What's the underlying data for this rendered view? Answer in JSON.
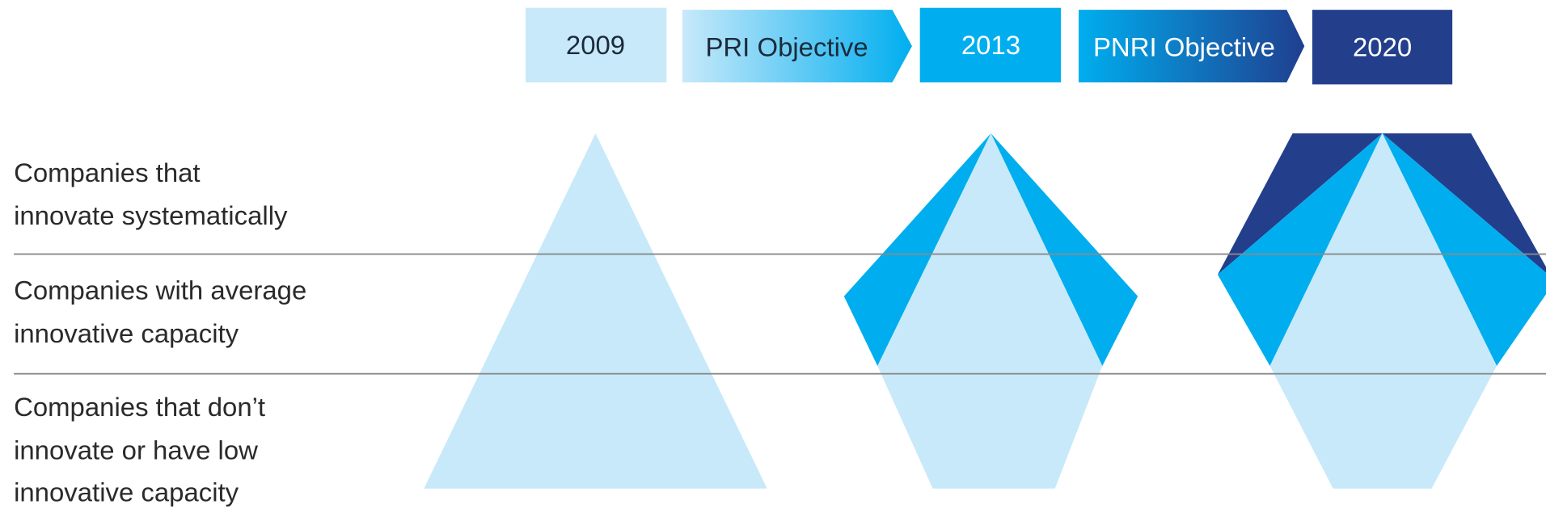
{
  "header": [
    "2009",
    "PRI Objective",
    "2013",
    "PNRI Objective",
    "2020"
  ],
  "rows": [
    [
      "Companies that",
      "innovate systematically"
    ],
    [
      "Companies with average",
      "innovative capacity"
    ],
    [
      "Companies that don’t",
      "innovate or have low",
      "innovative capacity"
    ]
  ]
}
